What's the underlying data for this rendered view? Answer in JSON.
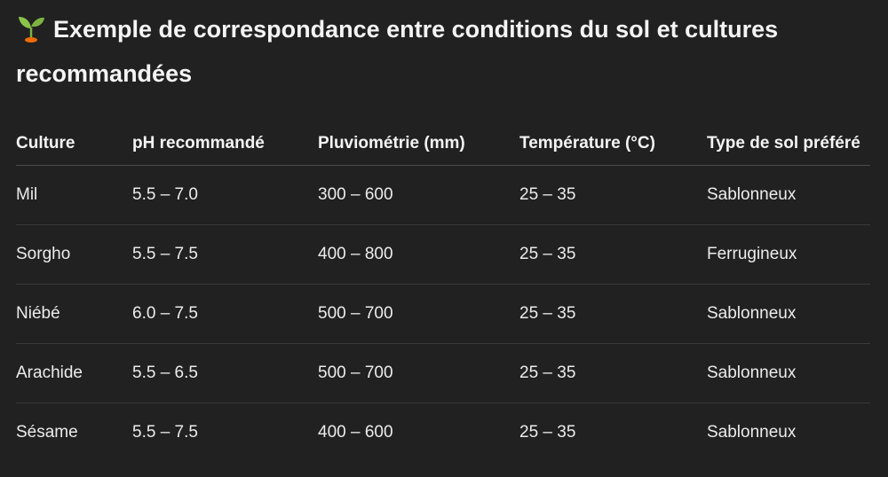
{
  "heading": {
    "icon": "sprout-icon",
    "text": "Exemple de correspondance entre conditions du sol et cultures recommandées"
  },
  "table": {
    "headers": [
      "Culture",
      "pH recommandé",
      "Pluviométrie (mm)",
      "Température (°C)",
      "Type de sol préféré"
    ],
    "rows": [
      [
        "Mil",
        "5.5 – 7.0",
        "300 – 600",
        "25 – 35",
        "Sablonneux"
      ],
      [
        "Sorgho",
        "5.5 – 7.5",
        "400 – 800",
        "25 – 35",
        "Ferrugineux"
      ],
      [
        "Niébé",
        "6.0 – 7.5",
        "500 – 700",
        "25 – 35",
        "Sablonneux"
      ],
      [
        "Arachide",
        "5.5 – 6.5",
        "500 – 700",
        "25 – 35",
        "Sablonneux"
      ],
      [
        "Sésame",
        "5.5 – 7.5",
        "400 – 600",
        "25 – 35",
        "Sablonneux"
      ]
    ]
  }
}
